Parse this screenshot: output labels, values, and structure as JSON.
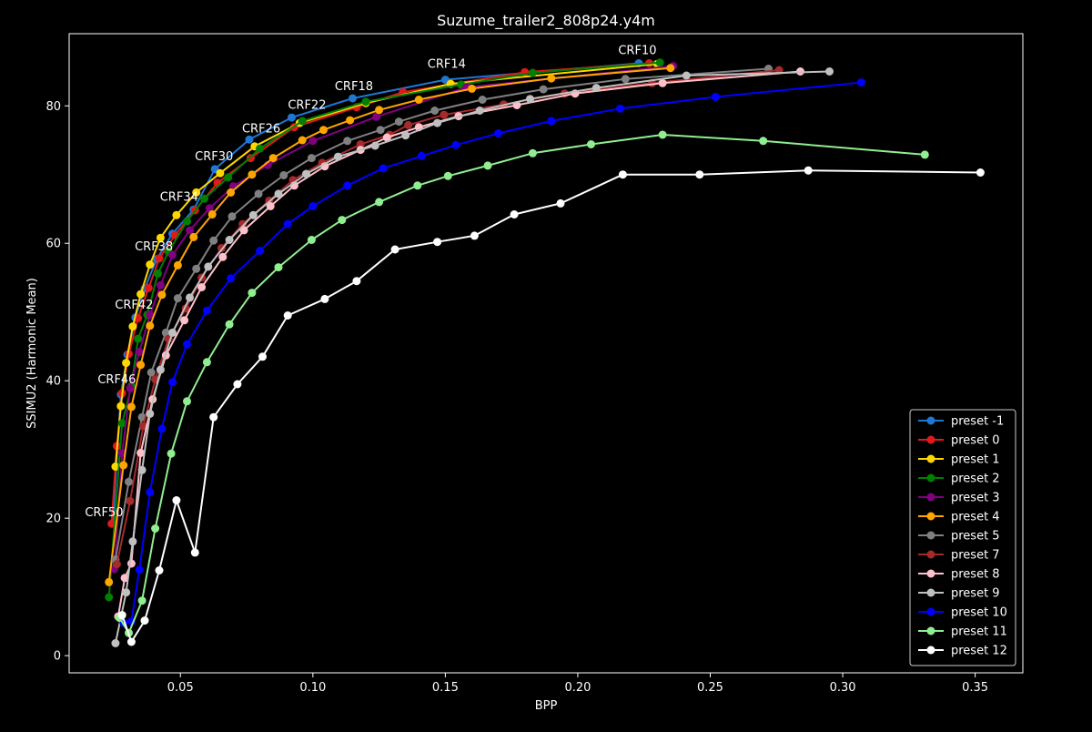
{
  "chart_data": {
    "type": "line",
    "title": "Suzume_trailer2_808p24.y4m",
    "xlabel": "BPP",
    "ylabel": "SSIMU2 (Harmonic Mean)",
    "xlim": [
      0.008,
      0.368
    ],
    "ylim": [
      -2.5,
      90.5
    ],
    "xticks": [
      0.05,
      0.1,
      0.15,
      0.2,
      0.25,
      0.3,
      0.35
    ],
    "xtick_labels": [
      "0.05",
      "0.10",
      "0.15",
      "0.20",
      "0.25",
      "0.30",
      "0.35"
    ],
    "yticks": [
      0,
      20,
      40,
      60,
      80
    ],
    "ytick_labels": [
      "0",
      "20",
      "40",
      "60",
      "80"
    ],
    "legend_position": "bottom-right",
    "annotations": [
      {
        "text": "CRF10",
        "x": 0.2225,
        "y": 87.5
      },
      {
        "text": "CRF14",
        "x": 0.1505,
        "y": 85.5
      },
      {
        "text": "CRF18",
        "x": 0.1155,
        "y": 82.3
      },
      {
        "text": "CRF22",
        "x": 0.0978,
        "y": 79.6
      },
      {
        "text": "CRF26",
        "x": 0.0805,
        "y": 76.1
      },
      {
        "text": "CRF30",
        "x": 0.0627,
        "y": 72.1
      },
      {
        "text": "CRF34",
        "x": 0.0495,
        "y": 66.2
      },
      {
        "text": "CRF38",
        "x": 0.04,
        "y": 59.0
      },
      {
        "text": "CRF42",
        "x": 0.0325,
        "y": 50.5
      },
      {
        "text": "CRF46",
        "x": 0.026,
        "y": 39.6
      },
      {
        "text": "CRF50",
        "x": 0.0212,
        "y": 20.3
      }
    ],
    "series": [
      {
        "name": "preset -1",
        "color": "#1f77d4",
        "x": [
          0.0245,
          0.0275,
          0.03,
          0.033,
          0.0365,
          0.041,
          0.047,
          0.055,
          0.063,
          0.076,
          0.092,
          0.115,
          0.15,
          0.223
        ],
        "y": [
          19.3,
          38.0,
          43.8,
          49.2,
          53.4,
          57.7,
          61.4,
          64.9,
          70.8,
          75.1,
          78.3,
          81.1,
          83.8,
          86.2
        ]
      },
      {
        "name": "preset 0",
        "color": "#e0191b",
        "x": [
          0.024,
          0.026,
          0.028,
          0.0305,
          0.034,
          0.038,
          0.042,
          0.048,
          0.0555,
          0.064,
          0.0765,
          0.093,
          0.1165,
          0.134,
          0.18,
          0.227
        ],
        "y": [
          19.2,
          30.5,
          38.2,
          43.9,
          49.1,
          53.5,
          57.8,
          61.2,
          64.8,
          68.8,
          72.4,
          76.9,
          79.8,
          82.0,
          84.9,
          86.2
        ]
      },
      {
        "name": "preset 1",
        "color": "#ffd700",
        "x": [
          0.0255,
          0.0275,
          0.0295,
          0.032,
          0.035,
          0.0385,
          0.0425,
          0.0485,
          0.056,
          0.065,
          0.078,
          0.095,
          0.12,
          0.152,
          0.23
        ],
        "y": [
          27.5,
          36.3,
          42.6,
          47.9,
          52.6,
          56.9,
          60.8,
          64.1,
          67.4,
          70.2,
          74.1,
          77.5,
          80.4,
          83.2,
          86.1
        ]
      },
      {
        "name": "preset 2",
        "color": "#007f00",
        "x": [
          0.023,
          0.028,
          0.0315,
          0.034,
          0.0375,
          0.0415,
          0.0455,
          0.0525,
          0.059,
          0.068,
          0.08,
          0.096,
          0.12,
          0.156,
          0.183,
          0.231
        ],
        "y": [
          8.5,
          33.8,
          39.2,
          46.1,
          49.6,
          55.6,
          58.8,
          63.2,
          66.5,
          69.6,
          73.8,
          77.8,
          80.6,
          83.1,
          84.8,
          86.3
        ]
      },
      {
        "name": "preset 3",
        "color": "#800080",
        "x": [
          0.025,
          0.028,
          0.031,
          0.0345,
          0.0385,
          0.0425,
          0.047,
          0.0535,
          0.061,
          0.07,
          0.083,
          0.1,
          0.124,
          0.158,
          0.236
        ],
        "y": [
          12.6,
          29.5,
          38.9,
          44.2,
          49.6,
          53.9,
          58.3,
          61.9,
          65.1,
          68.3,
          71.4,
          74.9,
          78.4,
          82.7,
          85.8
        ]
      },
      {
        "name": "preset 4",
        "color": "#ffa500",
        "x": [
          0.023,
          0.0285,
          0.0315,
          0.035,
          0.0385,
          0.043,
          0.049,
          0.055,
          0.062,
          0.069,
          0.077,
          0.085,
          0.096,
          0.104,
          0.114,
          0.125,
          0.14,
          0.16,
          0.19,
          0.235
        ],
        "y": [
          10.7,
          27.7,
          36.2,
          42.3,
          48.0,
          52.5,
          56.8,
          60.9,
          64.2,
          67.4,
          70.0,
          72.4,
          75.0,
          76.5,
          77.9,
          79.4,
          80.9,
          82.5,
          84.0,
          85.5
        ]
      },
      {
        "name": "preset 5",
        "color": "#808080",
        "x": [
          0.0255,
          0.0305,
          0.0355,
          0.039,
          0.0445,
          0.049,
          0.056,
          0.0625,
          0.0695,
          0.0795,
          0.089,
          0.0995,
          0.113,
          0.1255,
          0.1325,
          0.146,
          0.164,
          0.187,
          0.218,
          0.272
        ],
        "y": [
          14.0,
          25.3,
          34.7,
          41.2,
          47.0,
          52.0,
          56.3,
          60.4,
          63.9,
          67.2,
          69.9,
          72.4,
          74.9,
          76.5,
          77.7,
          79.3,
          80.9,
          82.4,
          83.9,
          85.4
        ]
      },
      {
        "name": "preset 7",
        "color": "#a52a2a",
        "x": [
          0.026,
          0.031,
          0.036,
          0.0405,
          0.0455,
          0.052,
          0.058,
          0.0655,
          0.0735,
          0.0835,
          0.0925,
          0.1035,
          0.118,
          0.129,
          0.136,
          0.1495,
          0.172,
          0.195,
          0.228,
          0.276
        ],
        "y": [
          13.3,
          22.5,
          33.4,
          40.2,
          46.1,
          50.5,
          55.0,
          59.3,
          62.8,
          66.2,
          69.2,
          71.7,
          74.4,
          75.8,
          77.2,
          78.7,
          80.2,
          81.8,
          83.3,
          85.2
        ]
      },
      {
        "name": "preset 8",
        "color": "#ffc0cb",
        "x": [
          0.0265,
          0.029,
          0.0315,
          0.035,
          0.0395,
          0.0445,
          0.0515,
          0.058,
          0.066,
          0.074,
          0.084,
          0.093,
          0.1045,
          0.118,
          0.128,
          0.14,
          0.155,
          0.177,
          0.199,
          0.232,
          0.284
        ],
        "y": [
          5.7,
          11.3,
          13.4,
          29.5,
          37.3,
          43.7,
          48.8,
          53.6,
          58.0,
          61.9,
          65.4,
          68.4,
          71.2,
          73.6,
          75.4,
          76.9,
          78.5,
          80.1,
          81.8,
          83.3,
          85.0
        ]
      },
      {
        "name": "preset 9",
        "color": "#c0c0c0",
        "x": [
          0.0255,
          0.0295,
          0.032,
          0.0355,
          0.0385,
          0.0425,
          0.047,
          0.0535,
          0.0605,
          0.0685,
          0.0775,
          0.087,
          0.0975,
          0.1095,
          0.1235,
          0.135,
          0.147,
          0.163,
          0.182,
          0.207,
          0.241,
          0.295
        ],
        "y": [
          1.8,
          9.2,
          16.6,
          27.0,
          35.2,
          41.6,
          47.0,
          52.1,
          56.6,
          60.5,
          64.1,
          67.2,
          70.1,
          72.6,
          74.2,
          75.7,
          77.5,
          79.3,
          81.0,
          82.6,
          84.4,
          85.0
        ]
      },
      {
        "name": "preset 10",
        "color": "#0000ff",
        "x": [
          0.0285,
          0.0315,
          0.0345,
          0.0385,
          0.043,
          0.047,
          0.0525,
          0.06,
          0.069,
          0.08,
          0.0905,
          0.1,
          0.113,
          0.1265,
          0.141,
          0.154,
          0.17,
          0.19,
          0.216,
          0.252,
          0.307
        ],
        "y": [
          4.8,
          5.0,
          12.5,
          23.8,
          33.0,
          39.8,
          45.3,
          50.2,
          54.9,
          58.9,
          62.8,
          65.4,
          68.4,
          70.9,
          72.7,
          74.3,
          76.0,
          77.8,
          79.6,
          81.3,
          83.4
        ]
      },
      {
        "name": "preset 11",
        "color": "#90ee90",
        "x": [
          0.027,
          0.0305,
          0.0355,
          0.0405,
          0.0465,
          0.0525,
          0.06,
          0.0685,
          0.077,
          0.087,
          0.0995,
          0.111,
          0.125,
          0.1395,
          0.151,
          0.166,
          0.183,
          0.205,
          0.232,
          0.27,
          0.331
        ],
        "y": [
          5.5,
          3.3,
          8.0,
          18.5,
          29.4,
          37.0,
          42.7,
          48.2,
          52.8,
          56.5,
          60.5,
          63.4,
          66.0,
          68.4,
          69.8,
          71.3,
          73.1,
          74.4,
          75.8,
          74.9,
          72.9
        ]
      },
      {
        "name": "preset 12",
        "color": "#ffffff",
        "x": [
          0.028,
          0.0315,
          0.0365,
          0.042,
          0.0485,
          0.0555,
          0.0625,
          0.0715,
          0.081,
          0.0905,
          0.1045,
          0.1165,
          0.131,
          0.147,
          0.161,
          0.176,
          0.1935,
          0.217,
          0.246,
          0.287,
          0.352
        ],
        "y": [
          5.9,
          2.0,
          5.1,
          12.4,
          22.6,
          15.0,
          34.7,
          39.5,
          43.5,
          49.5,
          51.9,
          54.5,
          59.1,
          60.2,
          61.1,
          64.2,
          65.8,
          70.0,
          70.0,
          70.6,
          70.3
        ]
      }
    ]
  }
}
